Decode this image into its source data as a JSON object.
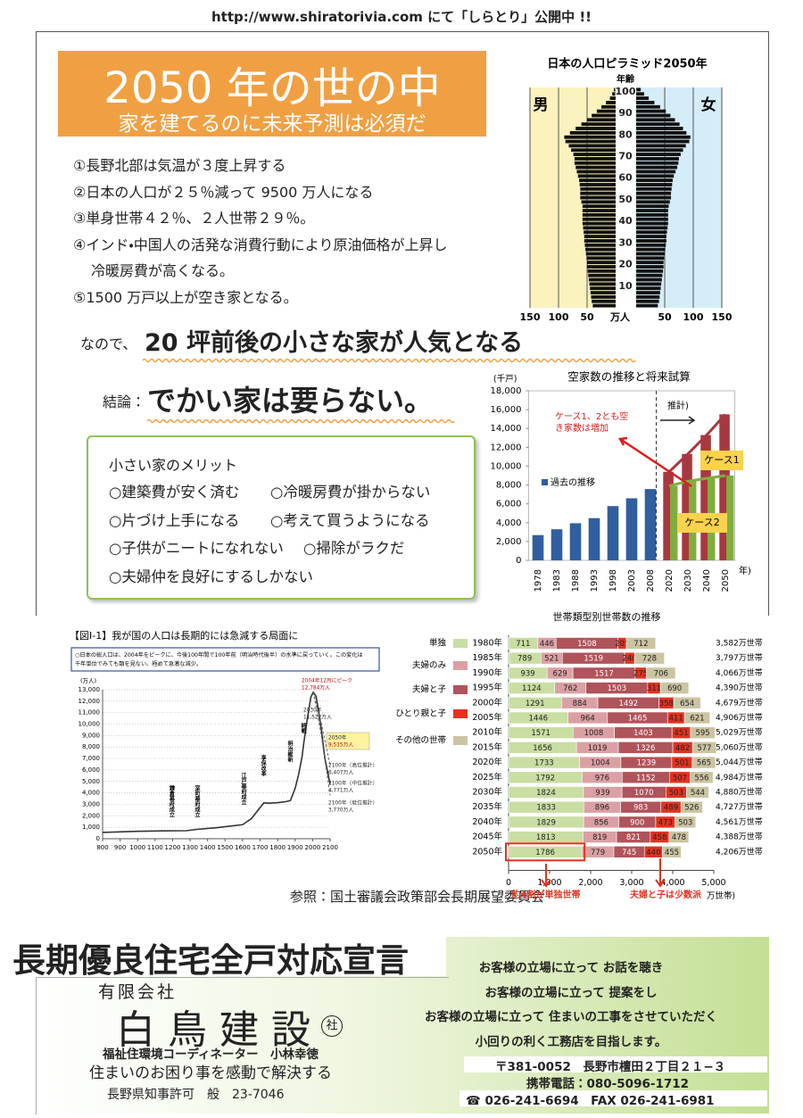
{
  "header": {
    "url": "http://www.shiratorivia.com にて「しらとり」公開中 !!"
  },
  "headline": {
    "title": "2050 年の世の中",
    "subtitle": "家を建てるのに未来予測は必須だ"
  },
  "predictions": {
    "lines": [
      "①長野北部は気温が３度上昇する",
      "②日本の人口が２５％減って 9500 万人になる",
      "③単身世帯４２％、２人世帯２９％。",
      "④インド・中国人の活発な消費行動により原油価格が上昇し",
      "冷暖房費が高くなる。",
      "⑤1500 万戸以上が空き家となる。"
    ]
  },
  "message": {
    "lead": "なので、",
    "main": "20 坪前後の小さな家が人気となる",
    "conclusion_lead": "結論：",
    "conclusion": "でかい家は要らない。"
  },
  "merits": {
    "title": "小さい家のメリット",
    "rows": [
      [
        "○建築費が安く済む",
        "○冷暖房費が掛からない"
      ],
      [
        "○片づけ上手になる",
        "○考えて買うようになる"
      ],
      [
        "○子供がニートになれない",
        "○掃除がラクだ"
      ],
      [
        "○夫婦仲を良好にするしかない"
      ]
    ]
  },
  "reference": "参照：国土審議会政策部会長期展望委員会",
  "chart_data": [
    {
      "type": "population_pyramid",
      "title": "日本の人口ピラミッド2050年",
      "x_label": "年齢",
      "y_label": "万人",
      "x": [
        0,
        2,
        4,
        6,
        8,
        10,
        12,
        14,
        16,
        18,
        20,
        22,
        24,
        26,
        28,
        30,
        32,
        34,
        36,
        38,
        40,
        42,
        44,
        46,
        48,
        50,
        52,
        54,
        56,
        58,
        60,
        62,
        64,
        66,
        68,
        70,
        72,
        74,
        76,
        78,
        80,
        82,
        84,
        86,
        88,
        90,
        92,
        94,
        96,
        98,
        100
      ],
      "xlim": [
        0,
        102
      ],
      "xticks": [
        10,
        20,
        30,
        40,
        50,
        60,
        70,
        80,
        90,
        100
      ],
      "ylim": [
        0,
        150
      ],
      "yticks": [
        50,
        100,
        150
      ],
      "grid": true,
      "series": [
        {
          "name": "男",
          "color": "#111111",
          "values": [
            40,
            42,
            43,
            44,
            45,
            46,
            47,
            48,
            49,
            50,
            50,
            51,
            52,
            53,
            54,
            55,
            55,
            56,
            57,
            58,
            58,
            58,
            58,
            58,
            60,
            62,
            62,
            62,
            63,
            64,
            66,
            68,
            70,
            72,
            72,
            74,
            78,
            82,
            88,
            90,
            80,
            70,
            60,
            50,
            42,
            33,
            25,
            17,
            10,
            6,
            3
          ]
        },
        {
          "name": "女",
          "color": "#111111",
          "values": [
            38,
            40,
            41,
            42,
            43,
            44,
            45,
            46,
            47,
            48,
            48,
            49,
            50,
            51,
            52,
            53,
            53,
            54,
            55,
            56,
            56,
            56,
            56,
            57,
            59,
            61,
            61,
            62,
            63,
            64,
            66,
            69,
            72,
            74,
            75,
            78,
            82,
            87,
            93,
            95,
            88,
            82,
            76,
            68,
            60,
            52,
            42,
            32,
            22,
            14,
            8
          ]
        }
      ]
    },
    {
      "type": "bar",
      "title": "空家数の推移と将来試算",
      "y_label": "(千戸)",
      "x_label": "年)",
      "forecast_label": "推計)",
      "annotation_lines": [
        "ケース1、2とも空",
        "き家数は増加"
      ],
      "categories": [
        "1978",
        "1983",
        "1988",
        "1993",
        "1998",
        "2003",
        "2008",
        "2020",
        "2030",
        "2040",
        "2050"
      ],
      "ylim": [
        0,
        18000
      ],
      "yticks": [
        0,
        {
          "value": 2000,
          "label": "2,000"
        },
        {
          "value": 4000,
          "label": "4,000"
        },
        {
          "value": 6000,
          "label": "6,000"
        },
        {
          "value": 8000,
          "label": "8,000"
        },
        {
          "value": 10000,
          "label": "10,000"
        },
        {
          "value": 12000,
          "label": "12,000"
        },
        {
          "value": 14000,
          "label": "14,000"
        },
        {
          "value": 16000,
          "label": "16,000"
        },
        {
          "value": 18000,
          "label": "18,000"
        }
      ],
      "series": [
        {
          "name": "過去の推移",
          "color": "#2f5f9e",
          "values": [
            2680,
            3300,
            3940,
            4480,
            5760,
            6590,
            7570,
            null,
            null,
            null,
            null
          ]
        },
        {
          "name": "ケース1",
          "color": "#a8383f",
          "values": [
            null,
            null,
            null,
            null,
            null,
            null,
            null,
            9400,
            11300,
            13300,
            15500
          ]
        },
        {
          "name": "ケース2",
          "color": "#7fae3e",
          "values": [
            null,
            null,
            null,
            null,
            null,
            null,
            null,
            7900,
            8400,
            8700,
            9000
          ]
        }
      ]
    },
    {
      "type": "stacked_bar",
      "title": "世帯類型別世帯数の推移",
      "x_label": "万世帯)",
      "annotations": [
        "約4割が単独世帯",
        "夫婦と子は少数派"
      ],
      "categories": [
        "1980年",
        "1985年",
        "1990年",
        "1995年",
        "2000年",
        "2005年",
        "2010年",
        "2015年",
        "2020年",
        "2025年",
        "2030年",
        "2035年",
        "2040年",
        "2045年",
        "2050年"
      ],
      "total_labels": [
        "3,582万世帯",
        "3,797万世帯",
        "4,066万世帯",
        "4,390万世帯",
        "4,679万世帯",
        "4,906万世帯",
        "5,029万世帯",
        "5,060万世帯",
        "5,044万世帯",
        "4,984万世帯",
        "4,880万世帯",
        "4,727万世帯",
        "4,561万世帯",
        "4,388万世帯",
        "4,206万世帯"
      ],
      "xlim": [
        0,
        5000
      ],
      "xticks": [
        0,
        {
          "value": 1000,
          "label": "1,000"
        },
        {
          "value": 2000,
          "label": "2,000"
        },
        {
          "value": 3000,
          "label": "3,000"
        },
        {
          "value": 4000,
          "label": "4,000"
        },
        {
          "value": 5000,
          "label": "5,000"
        }
      ],
      "series": [
        {
          "name": "単独",
          "color": "#c9dea2",
          "values": [
            711,
            789,
            939,
            1124,
            1291,
            1446,
            1571,
            1656,
            1733,
            1792,
            1824,
            1833,
            1829,
            1813,
            1786
          ]
        },
        {
          "name": "夫婦のみ",
          "color": "#dba0a4",
          "values": [
            446,
            521,
            629,
            762,
            884,
            964,
            1008,
            1019,
            1004,
            976,
            939,
            896,
            856,
            819,
            779
          ]
        },
        {
          "name": "夫婦と子",
          "color": "#b0535a",
          "values": [
            1508,
            1519,
            1517,
            1503,
            1492,
            1465,
            1403,
            1326,
            1239,
            1152,
            1070,
            983,
            900,
            821,
            745
          ]
        },
        {
          "name": "ひとり親と子",
          "color": "#e2321f",
          "values": [
            205,
            240,
            275,
            311,
            358,
            411,
            451,
            482,
            501,
            507,
            503,
            489,
            473,
            458,
            440
          ]
        },
        {
          "name": "その他の世帯",
          "color": "#cbc4a2",
          "values": [
            712,
            728,
            706,
            690,
            654,
            621,
            595,
            577,
            565,
            556,
            544,
            526,
            503,
            478,
            455
          ]
        }
      ]
    },
    {
      "type": "line",
      "title": "【図Ⅰ-1】我が国の人口は長期的には急減する局面に",
      "note_lines": [
        "○日本の総人口は、2004年をピークに、今後100年間で100年前（明治時代後半）の水準に戻っていく。この変化は",
        "千年単位でみても類を見ない、極めて急激な減少。"
      ],
      "y_label": "(万人)",
      "annotations": [
        "2004年12月にピーク",
        "12,784万人",
        "2030年",
        "11,522万人",
        "2050年",
        "9,515万人",
        "2100年（高位推計）",
        "6,407万人",
        "2100年（中位推計）",
        "4,771万人",
        "2100年（低位推計）",
        "3,770万人"
      ],
      "events": [
        "鎌倉幕府成立",
        "室町幕府成立",
        "江戸幕府成立",
        "享保改革",
        "明治維新",
        "終戦"
      ],
      "xlim": [
        800,
        2100
      ],
      "xticks": [
        800,
        900,
        1000,
        1100,
        1200,
        1300,
        1400,
        1500,
        1600,
        1700,
        1800,
        1900,
        2000,
        2100
      ],
      "ylim": [
        0,
        13000
      ],
      "yticks": [
        0,
        {
          "value": 1000,
          "label": "1,000"
        },
        {
          "value": 2000,
          "label": "2,000"
        },
        {
          "value": 3000,
          "label": "3,000"
        },
        {
          "value": 4000,
          "label": "4,000"
        },
        {
          "value": 5000,
          "label": "5,000"
        },
        {
          "value": 6000,
          "label": "6,000"
        },
        {
          "value": 7000,
          "label": "7,000"
        },
        {
          "value": 8000,
          "label": "8,000"
        },
        {
          "value": 9000,
          "label": "9,000"
        },
        {
          "value": 10000,
          "label": "10,000"
        },
        {
          "value": 11000,
          "label": "11,000"
        },
        {
          "value": 12000,
          "label": "12,000"
        },
        {
          "value": 13000,
          "label": "13,000"
        }
      ],
      "grid": true,
      "series": [
        {
          "color": "#333333",
          "x": [
            800,
            900,
            1000,
            1150,
            1280,
            1338,
            1450,
            1600,
            1650,
            1721,
            1750,
            1800,
            1846,
            1873,
            1900,
            1920,
            1940,
            1950,
            1970,
            1990,
            2004,
            2020,
            2030,
            2050,
            2070,
            2100
          ],
          "values": [
            551,
            600,
            650,
            684,
            700,
            818,
            960,
            1227,
            1750,
            3128,
            3100,
            3150,
            3230,
            3330,
            4385,
            5596,
            7193,
            8411,
            10467,
            12361,
            12784,
            12410,
            11522,
            9515,
            7000,
            4771
          ]
        },
        {
          "color": "#666666",
          "x": [
            2004,
            2050,
            2100
          ],
          "values": [
            12784,
            10059,
            6407
          ]
        },
        {
          "color": "#666666",
          "x": [
            2004,
            2050,
            2100
          ],
          "values": [
            12784,
            8997,
            3770
          ]
        }
      ]
    }
  ],
  "footer": {
    "declaration": "長期優良住宅全戸対応宣言",
    "mottos": [
      "お客様の立場に立って お話を聴き",
      "お客様の立場に立って 提案をし",
      "お客様の立場に立って 住まいの工事をさせていただく",
      "小回りの利く工務店を目指します。"
    ],
    "company_type": "有限会社",
    "company": "白鳥建設",
    "seal": "社",
    "person": "福祉住環境コーディネーター　小林幸徳",
    "slogan": "住まいのお困り事を感動で解決する",
    "license": "長野県知事許可　般　23-7046",
    "address": "〒381-0052　長野市檀田２丁目２１−３",
    "mobile": "携帯電話：080-5096-1712",
    "phone": "☎ 026-241-6694　FAX 026-241-6981"
  }
}
